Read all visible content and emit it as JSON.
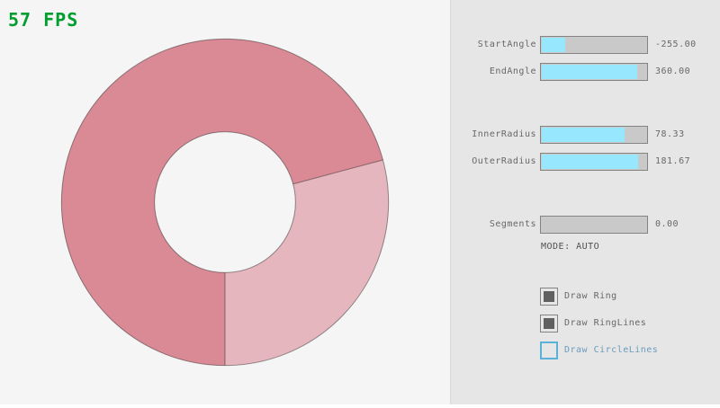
{
  "fps": {
    "text": "57 FPS",
    "color": "#009E2F"
  },
  "ring": {
    "dark_color": "#D98A95",
    "light_color": "#E5B6BD",
    "outline_color": "rgba(0,0,0,0.4)"
  },
  "panel": {
    "sliders": [
      {
        "label": "StartAngle",
        "value": "-255.00",
        "fill_pct": 21.67
      },
      {
        "label": "EndAngle",
        "value": "360.00",
        "fill_pct": 90.0
      },
      {
        "label": "InnerRadius",
        "value": "78.33",
        "fill_pct": 78.33
      },
      {
        "label": "OuterRadius",
        "value": "181.67",
        "fill_pct": 90.83
      },
      {
        "label": "Segments",
        "value": "0.00",
        "fill_pct": 0
      }
    ],
    "mode_label": "MODE: AUTO",
    "checkboxes": [
      {
        "label": "Draw Ring",
        "checked": true,
        "focused": false
      },
      {
        "label": "Draw RingLines",
        "checked": true,
        "focused": false
      },
      {
        "label": "Draw CircleLines",
        "checked": false,
        "focused": true
      }
    ],
    "colors": {
      "panel_bg": "#E6E6E6",
      "slider_fill": "#97E8FF",
      "slider_track": "#C9C9C9",
      "border": "#838383",
      "text": "#686868",
      "mode_text": "#505050",
      "focused_border": "#5BB2D9",
      "focused_text": "#6C9BBC",
      "check_mark": "#606060",
      "canvas_bg": "#F5F5F5"
    }
  }
}
